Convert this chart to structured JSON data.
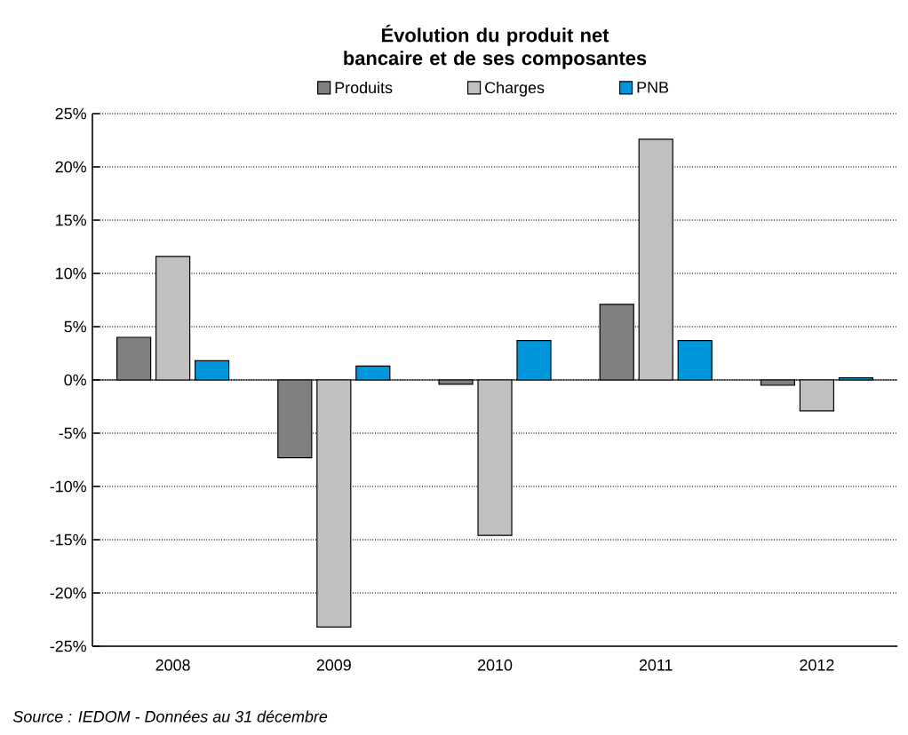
{
  "chart_data": {
    "type": "bar",
    "title": "Évolution du produit net bancaire et de ses composantes",
    "categories": [
      "2008",
      "2009",
      "2010",
      "2011",
      "2012"
    ],
    "series": [
      {
        "name": "Produits",
        "color": "#808080",
        "values": [
          4.0,
          -7.3,
          -0.4,
          7.1,
          -0.5
        ]
      },
      {
        "name": "Charges",
        "color": "#c0c0c0",
        "values": [
          11.6,
          -23.2,
          -14.6,
          22.6,
          -2.9
        ]
      },
      {
        "name": "PNB",
        "color": "#0096dc",
        "values": [
          1.8,
          1.3,
          3.7,
          3.7,
          0.2
        ]
      }
    ],
    "ylim": [
      -25,
      25
    ],
    "yticks": [
      {
        "value": -25,
        "label": "-25%"
      },
      {
        "value": -20,
        "label": "-20%"
      },
      {
        "value": -15,
        "label": "-15%"
      },
      {
        "value": -10,
        "label": "-10%"
      },
      {
        "value": -5,
        "label": "-5%"
      },
      {
        "value": 0,
        "label": "0%"
      },
      {
        "value": 5,
        "label": "5%"
      },
      {
        "value": 10,
        "label": "10%"
      },
      {
        "value": 15,
        "label": "15%"
      },
      {
        "value": 20,
        "label": "20%"
      },
      {
        "value": 25,
        "label": "25%"
      }
    ],
    "grid": "y",
    "legend": "top",
    "annotations": [
      "*Source : IEDOM  - Données au 31 décembre*"
    ]
  }
}
